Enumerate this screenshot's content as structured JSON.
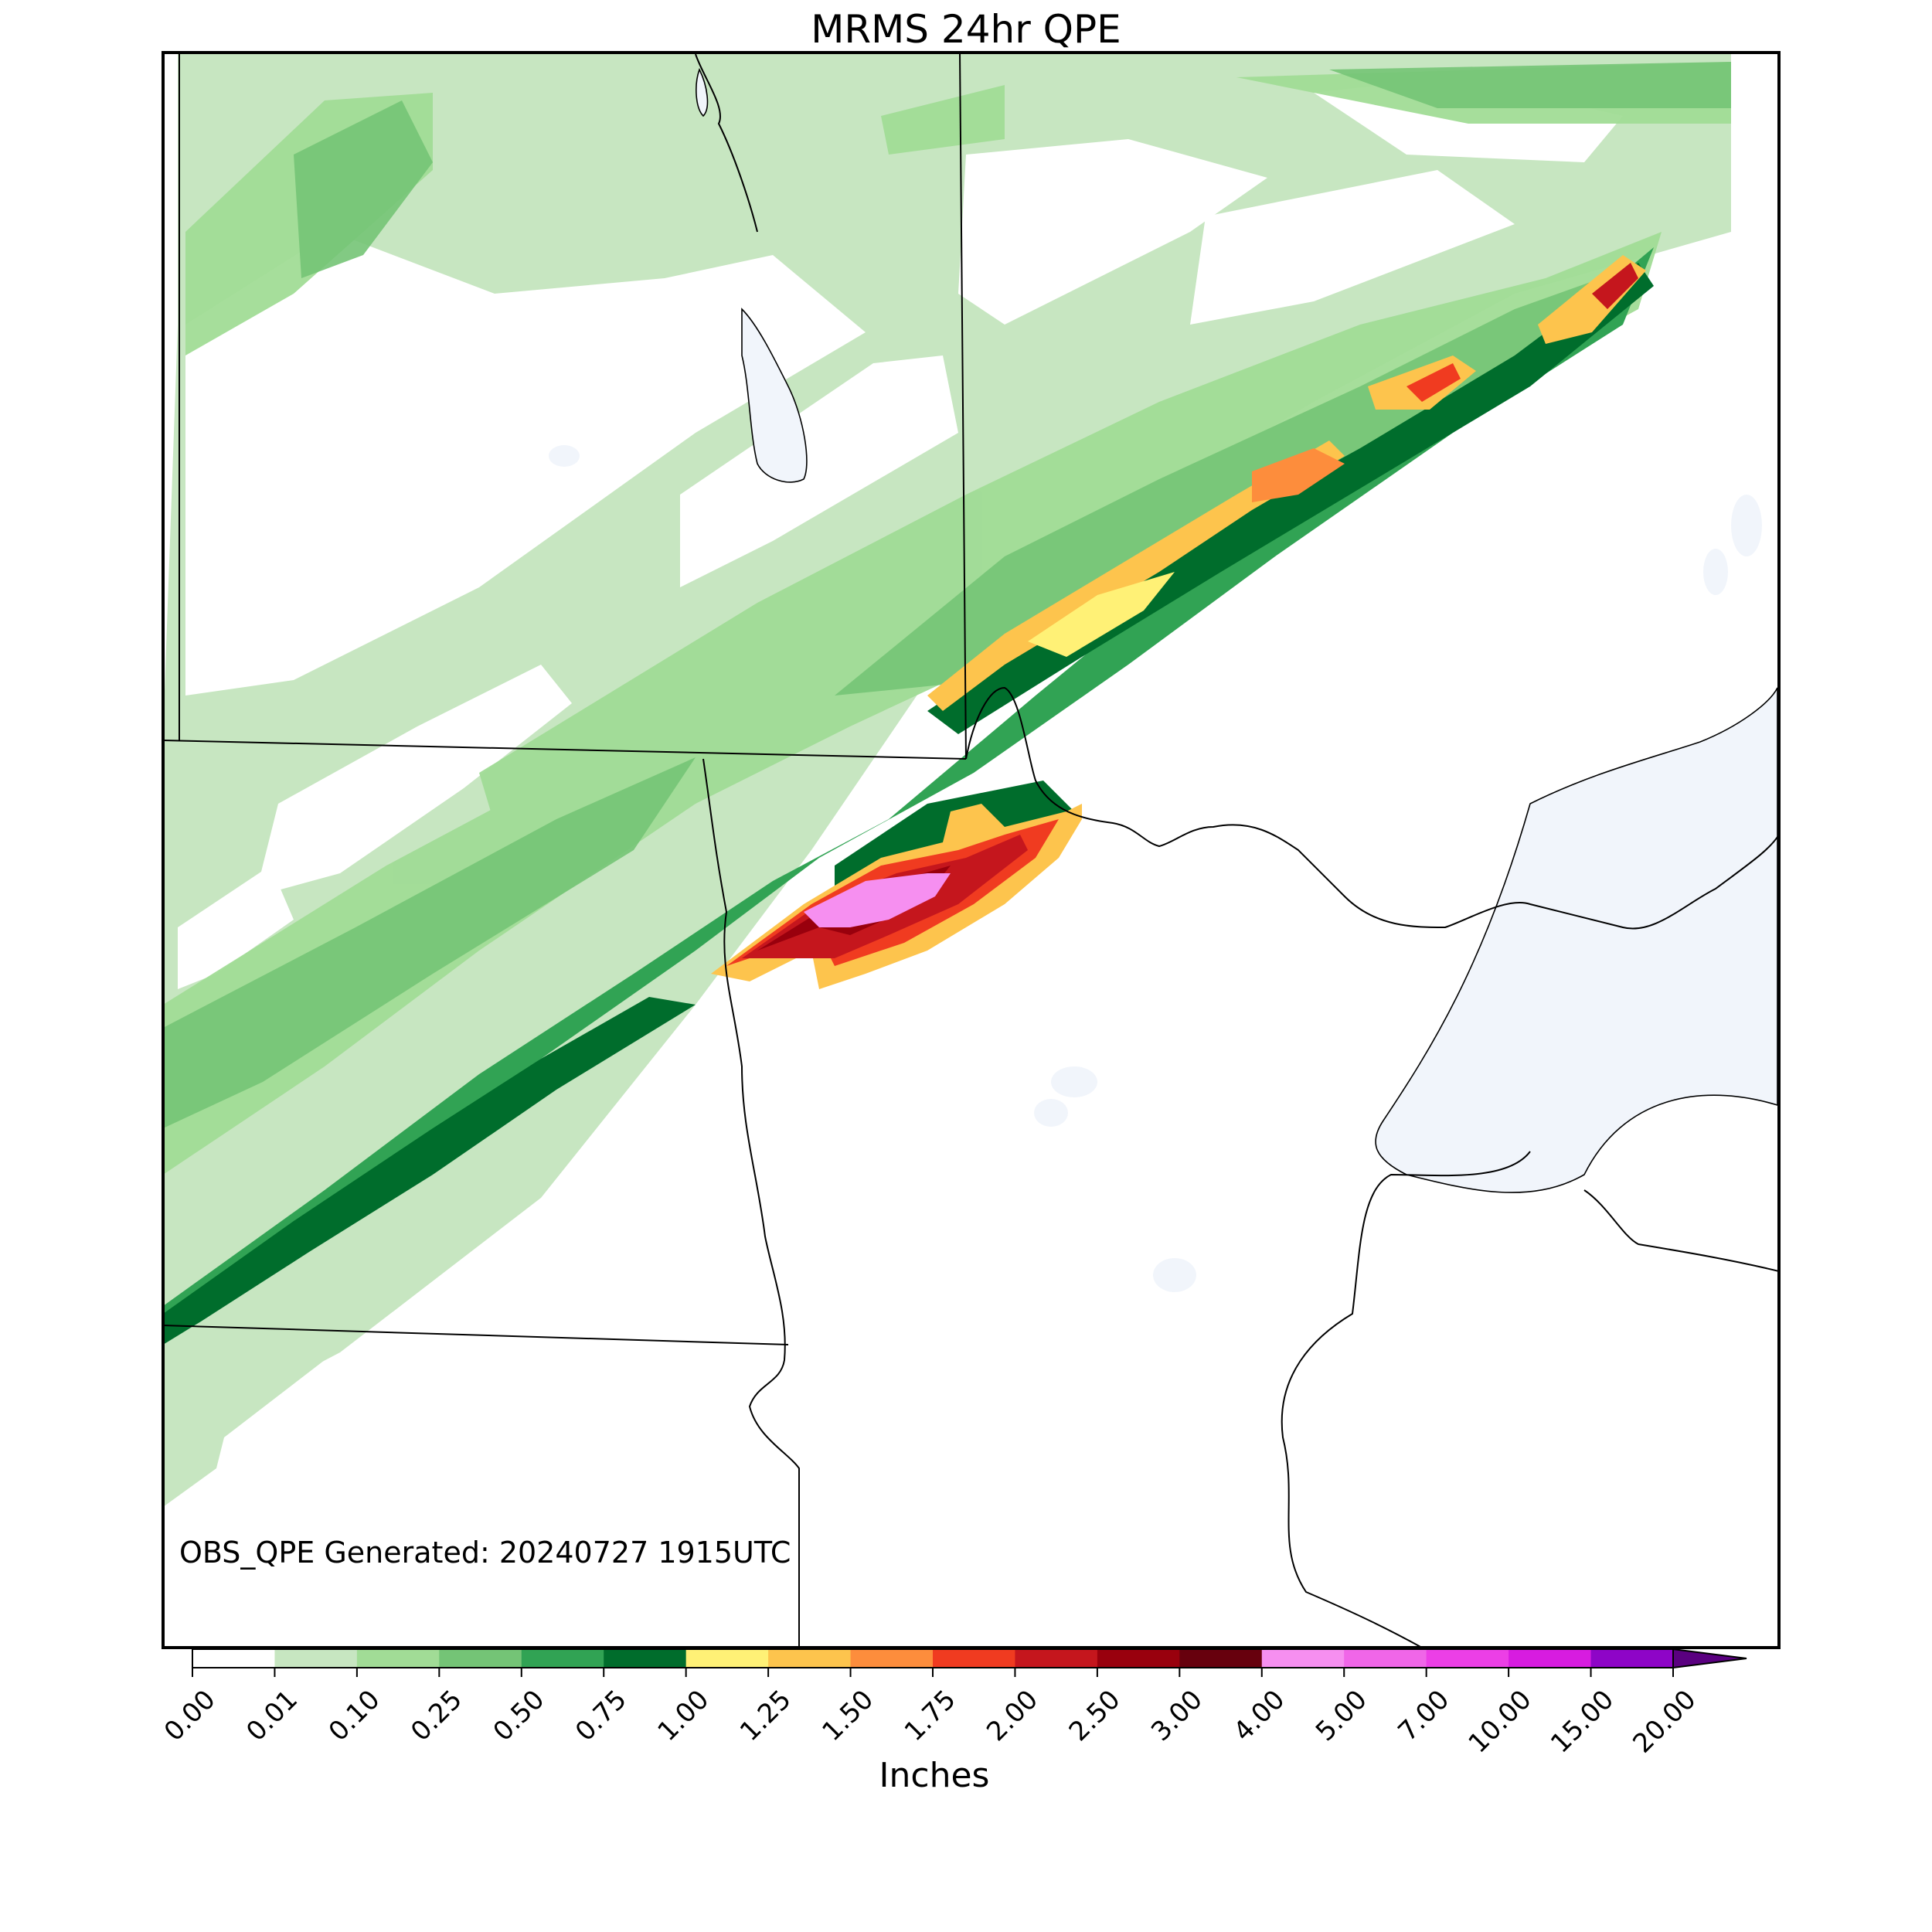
{
  "title": "MRMS 24hr QPE",
  "generated_note": "OBS_QPE Generated: 20240727 1915UTC",
  "colorbar": {
    "label": "Inches",
    "ticks": [
      "0.00",
      "0.01",
      "0.10",
      "0.25",
      "0.50",
      "0.75",
      "1.00",
      "1.25",
      "1.50",
      "1.75",
      "2.00",
      "2.50",
      "3.00",
      "4.00",
      "5.00",
      "7.00",
      "10.00",
      "15.00",
      "20.00"
    ],
    "colors": [
      "#ffffff",
      "#c7e6c1",
      "#a1dc96",
      "#74c476",
      "#31a354",
      "#006d2c",
      "#fff176",
      "#fdc44d",
      "#fd8d3c",
      "#f03b20",
      "#c5161d",
      "#99000d",
      "#67000d",
      "#f68ff0",
      "#f066e8",
      "#ec3fe6",
      "#d71ce0",
      "#8e05c7"
    ],
    "extend_color": "#5a0080"
  },
  "map_colors": {
    "water": "#f1f5fb",
    "border": "#000000"
  }
}
